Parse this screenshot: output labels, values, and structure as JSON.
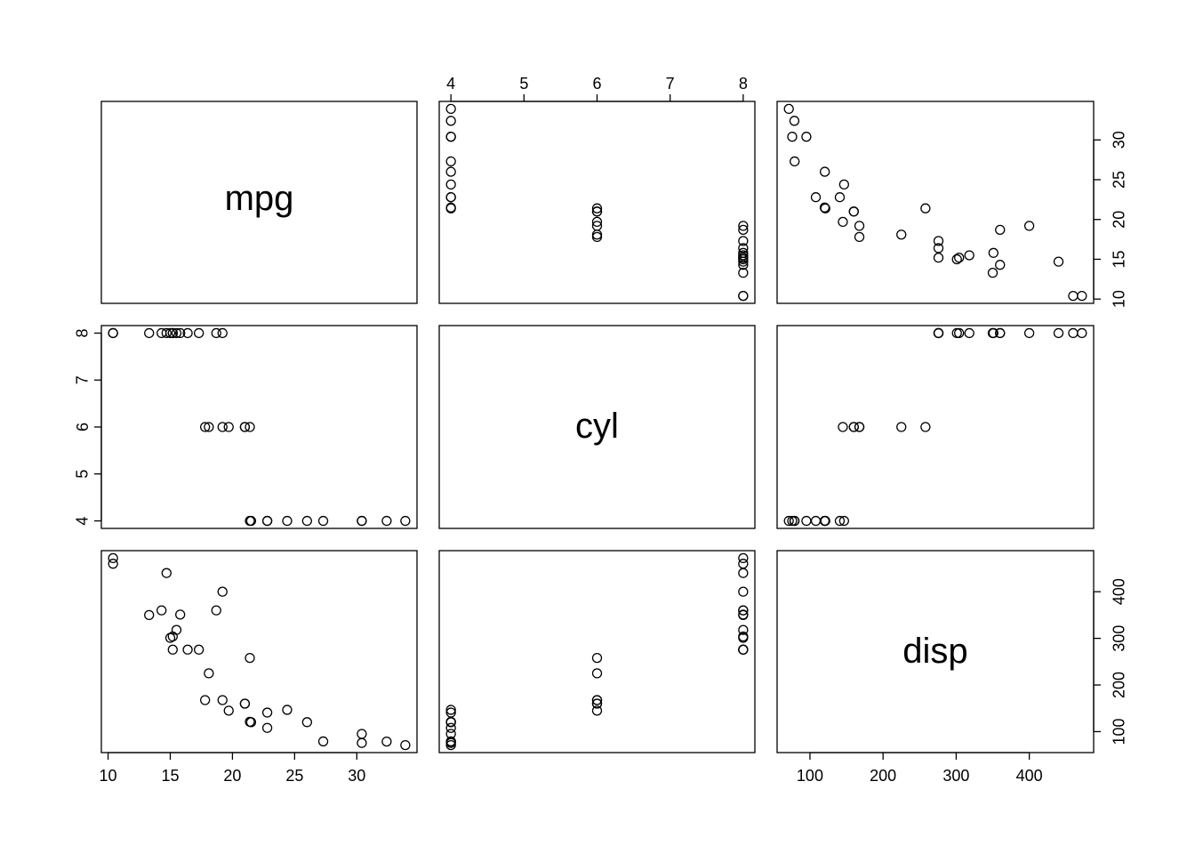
{
  "chart_data": {
    "type": "scatter",
    "variables": [
      "mpg",
      "cyl",
      "disp"
    ],
    "title": "",
    "grid": false,
    "ticks": {
      "mpg": [
        10,
        15,
        20,
        25,
        30
      ],
      "mpg_right": [
        10,
        15,
        20,
        25,
        30
      ],
      "cyl": [
        4,
        5,
        6,
        7,
        8
      ],
      "disp": [
        100,
        200,
        300,
        400
      ],
      "disp_right": [
        100,
        200,
        300,
        400
      ]
    },
    "ranges": {
      "mpg": [
        10.4,
        33.9
      ],
      "cyl": [
        4,
        8
      ],
      "disp": [
        71.1,
        472
      ]
    },
    "data": {
      "mpg": [
        21,
        21,
        22.8,
        21.4,
        18.7,
        18.1,
        14.3,
        24.4,
        22.8,
        19.2,
        17.8,
        16.4,
        17.3,
        15.2,
        10.4,
        10.4,
        14.7,
        32.4,
        30.4,
        33.9,
        21.5,
        15.5,
        15.2,
        13.3,
        19.2,
        27.3,
        26,
        30.4,
        15.8,
        19.7,
        15,
        21.4
      ],
      "cyl": [
        6,
        6,
        4,
        6,
        8,
        6,
        8,
        4,
        4,
        6,
        6,
        8,
        8,
        8,
        8,
        8,
        8,
        4,
        4,
        4,
        4,
        8,
        8,
        8,
        8,
        4,
        4,
        4,
        8,
        6,
        8,
        4
      ],
      "disp": [
        160,
        160,
        108,
        258,
        360,
        225,
        360,
        146.7,
        140.8,
        167.6,
        167.6,
        275.8,
        275.8,
        275.8,
        472,
        460,
        440,
        78.7,
        75.7,
        71.1,
        120.1,
        318,
        304,
        350,
        400,
        79,
        120.3,
        95.1,
        351,
        145,
        301,
        121
      ]
    }
  }
}
